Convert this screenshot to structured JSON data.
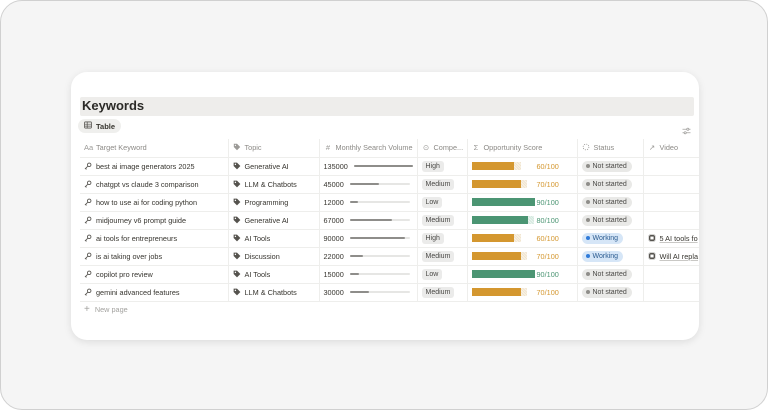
{
  "page": {
    "title": "Keywords",
    "view_tab": {
      "label": "Table",
      "icon": "table-icon"
    },
    "settings_icon": "sliders-icon",
    "new_page_label": "New page"
  },
  "colors": {
    "orange": "#d4972f",
    "orange_light": "#f1e5cf",
    "green": "#4b9573",
    "green_light": "#d3e8de",
    "status_gray_bg": "#e9e9e7",
    "status_blue_bg": "#d6e6f7",
    "status_blue_dot": "#2f7bd9"
  },
  "table": {
    "columns": [
      {
        "key": "keyword",
        "label": "Target Keyword",
        "icon": "text-icon",
        "glyph": "Aa"
      },
      {
        "key": "topic",
        "label": "Topic",
        "icon": "tag-icon",
        "glyph": ""
      },
      {
        "key": "volume",
        "label": "Monthly Search Volume",
        "icon": "hash-icon",
        "glyph": "#"
      },
      {
        "key": "competition",
        "label": "Compe...",
        "icon": "select-icon",
        "glyph": "⊙"
      },
      {
        "key": "score",
        "label": "Opportunity Score",
        "icon": "sigma-icon",
        "glyph": "Σ"
      },
      {
        "key": "status",
        "label": "Status",
        "icon": "status-icon",
        "glyph": "⁛"
      },
      {
        "key": "video",
        "label": "Video",
        "icon": "arrow-up-right-icon",
        "glyph": "↗"
      }
    ],
    "rows": [
      {
        "keyword": "best ai image generators 2025",
        "topic": "Generative AI",
        "volume": "135000",
        "volume_pct": 100,
        "competition": "High",
        "score": "60/100",
        "score_pct": 60,
        "score_color": "orange",
        "status": "Not started",
        "status_type": "gray",
        "video": ""
      },
      {
        "keyword": "chatgpt vs claude 3 comparison",
        "topic": "LLM & Chatbots",
        "volume": "45000",
        "volume_pct": 48,
        "competition": "Medium",
        "score": "70/100",
        "score_pct": 70,
        "score_color": "orange",
        "status": "Not started",
        "status_type": "gray",
        "video": ""
      },
      {
        "keyword": "how to use ai for coding python",
        "topic": "Programming",
        "volume": "12000",
        "volume_pct": 13,
        "competition": "Low",
        "score": "90/100",
        "score_pct": 90,
        "score_color": "green",
        "status": "Not started",
        "status_type": "gray",
        "video": ""
      },
      {
        "keyword": "midjourney v6 prompt guide",
        "topic": "Generative AI",
        "volume": "67000",
        "volume_pct": 70,
        "competition": "Medium",
        "score": "80/100",
        "score_pct": 80,
        "score_color": "green",
        "status": "Not started",
        "status_type": "gray",
        "video": ""
      },
      {
        "keyword": "ai tools for entrepreneurs",
        "topic": "AI Tools",
        "volume": "90000",
        "volume_pct": 92,
        "competition": "High",
        "score": "60/100",
        "score_pct": 60,
        "score_color": "orange",
        "status": "Working",
        "status_type": "blue",
        "video": "5 AI tools fo"
      },
      {
        "keyword": "is ai taking over jobs",
        "topic": "Discussion",
        "volume": "22000",
        "volume_pct": 22,
        "competition": "Medium",
        "score": "70/100",
        "score_pct": 70,
        "score_color": "orange",
        "status": "Working",
        "status_type": "blue",
        "video": "Will AI repla"
      },
      {
        "keyword": "copilot pro review",
        "topic": "AI Tools",
        "volume": "15000",
        "volume_pct": 16,
        "competition": "Low",
        "score": "90/100",
        "score_pct": 90,
        "score_color": "green",
        "status": "Not started",
        "status_type": "gray",
        "video": ""
      },
      {
        "keyword": "gemini advanced features",
        "topic": "LLM & Chatbots",
        "volume": "30000",
        "volume_pct": 32,
        "competition": "Medium",
        "score": "70/100",
        "score_pct": 70,
        "score_color": "orange",
        "status": "Not started",
        "status_type": "gray",
        "video": ""
      }
    ]
  }
}
